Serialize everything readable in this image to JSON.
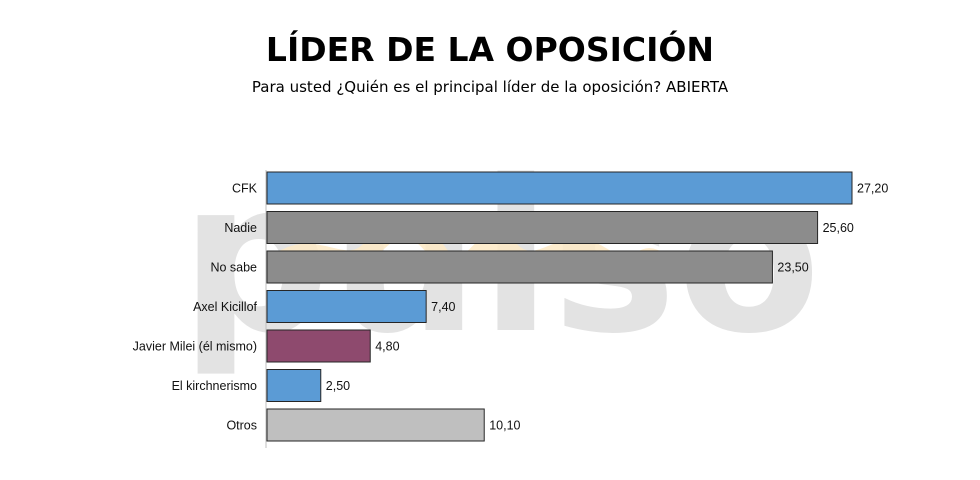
{
  "chart_data": {
    "type": "bar",
    "orientation": "horizontal",
    "title": "LÍDER DE LA OPOSICIÓN",
    "subtitle": "Para usted ¿Quién es el principal líder de la oposición? ABIERTA",
    "categories": [
      "CFK",
      "Nadie",
      "No sabe",
      "Axel Kicillof",
      "Javier Milei (él mismo)",
      "El kirchnerismo",
      "Otros"
    ],
    "values": [
      27.2,
      25.6,
      23.5,
      7.4,
      4.8,
      2.5,
      10.1
    ],
    "value_labels": [
      "27,20",
      "25,60",
      "23,50",
      "7,40",
      "4,80",
      "2,50",
      "10,10"
    ],
    "bar_colors": [
      "#5b9bd5",
      "#8c8c8c",
      "#8c8c8c",
      "#5b9bd5",
      "#8e4a6e",
      "#5b9bd5",
      "#bfbfbf"
    ],
    "xlim": [
      0,
      30
    ],
    "xlabel": "",
    "ylabel": "",
    "grid": false,
    "legend": "none"
  },
  "watermark": {
    "text": "pulso",
    "color": "#e3e3e3",
    "accent_color": "#fde9c4"
  }
}
